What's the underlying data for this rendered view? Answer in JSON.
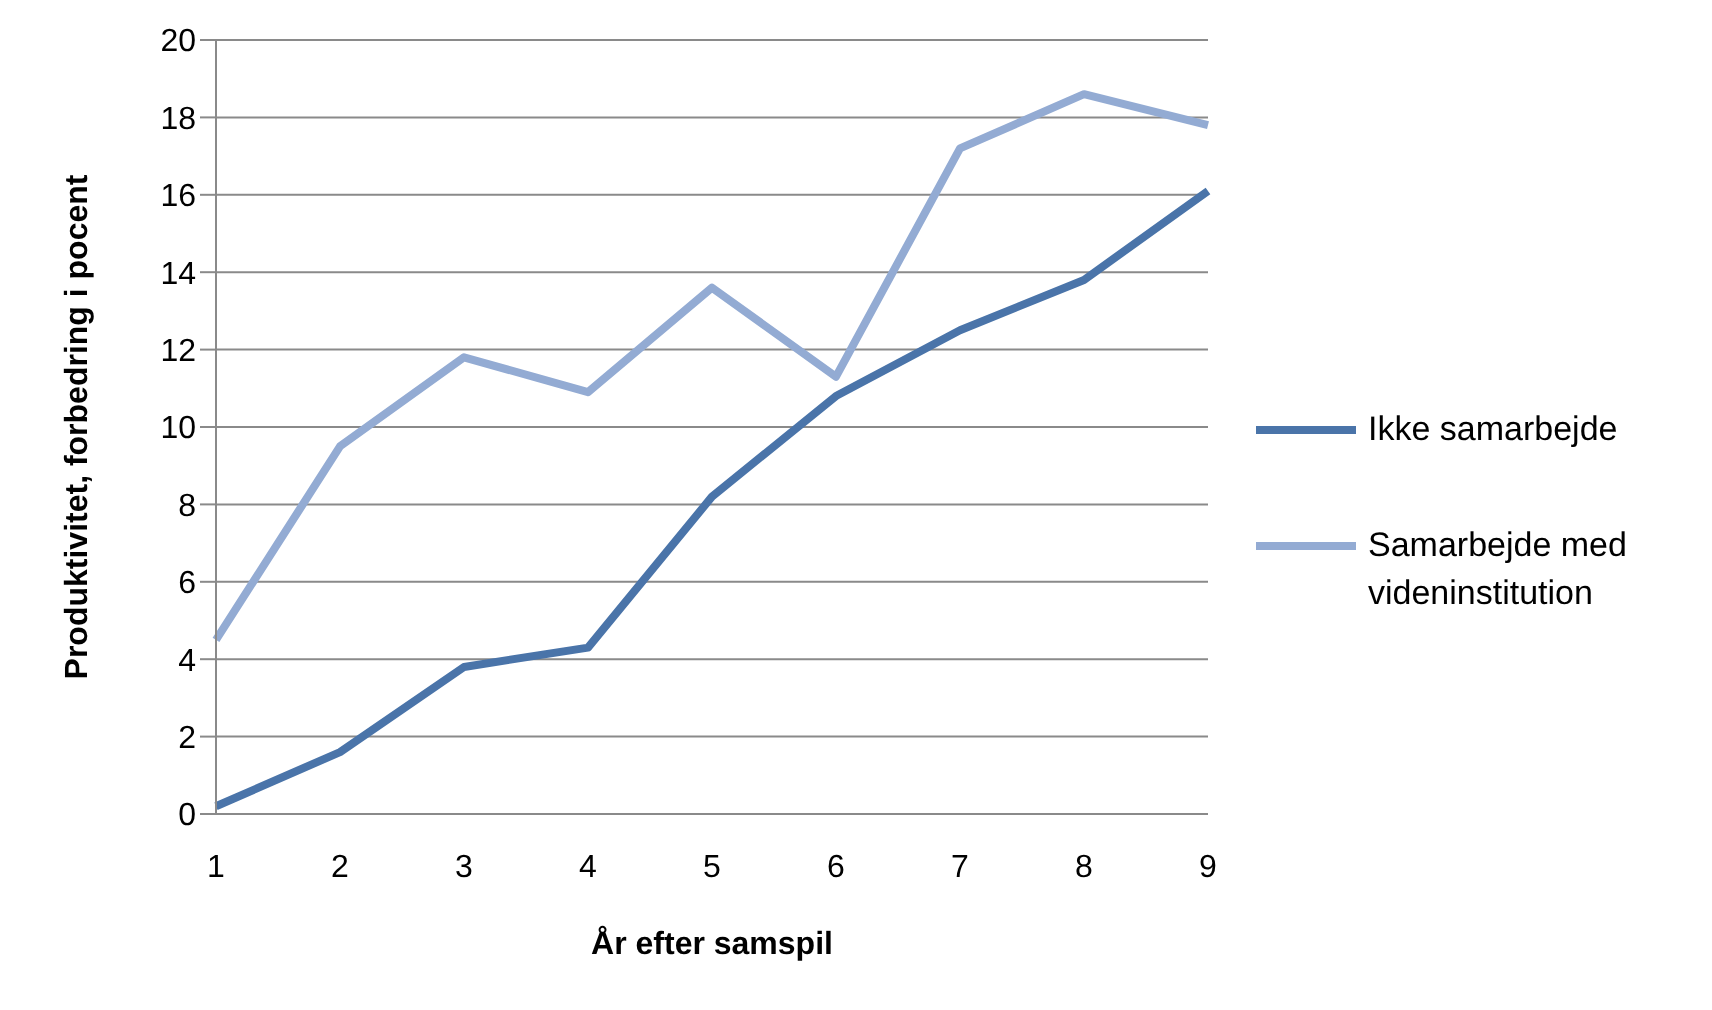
{
  "chart_data": {
    "type": "line",
    "xlabel": "År efter samspil",
    "ylabel": "Produktivitet, forbedring i pocent",
    "categories": [
      "1",
      "2",
      "3",
      "4",
      "5",
      "6",
      "7",
      "8",
      "9"
    ],
    "ylim": [
      0,
      20
    ],
    "yticks": [
      0,
      2,
      4,
      6,
      8,
      10,
      12,
      14,
      16,
      18,
      20
    ],
    "grid": "y",
    "legend": "right",
    "marker": "none",
    "series": [
      {
        "name": "Ikke samarbejde",
        "color": "#4a74a9",
        "values": [
          0.2,
          1.6,
          3.8,
          4.3,
          8.2,
          10.8,
          12.5,
          13.8,
          16.1
        ]
      },
      {
        "name": "Samarbejde med videninstitution",
        "color": "#93abd3",
        "values": [
          4.5,
          9.5,
          11.8,
          10.9,
          13.6,
          11.3,
          17.2,
          18.6,
          17.8
        ]
      }
    ]
  }
}
